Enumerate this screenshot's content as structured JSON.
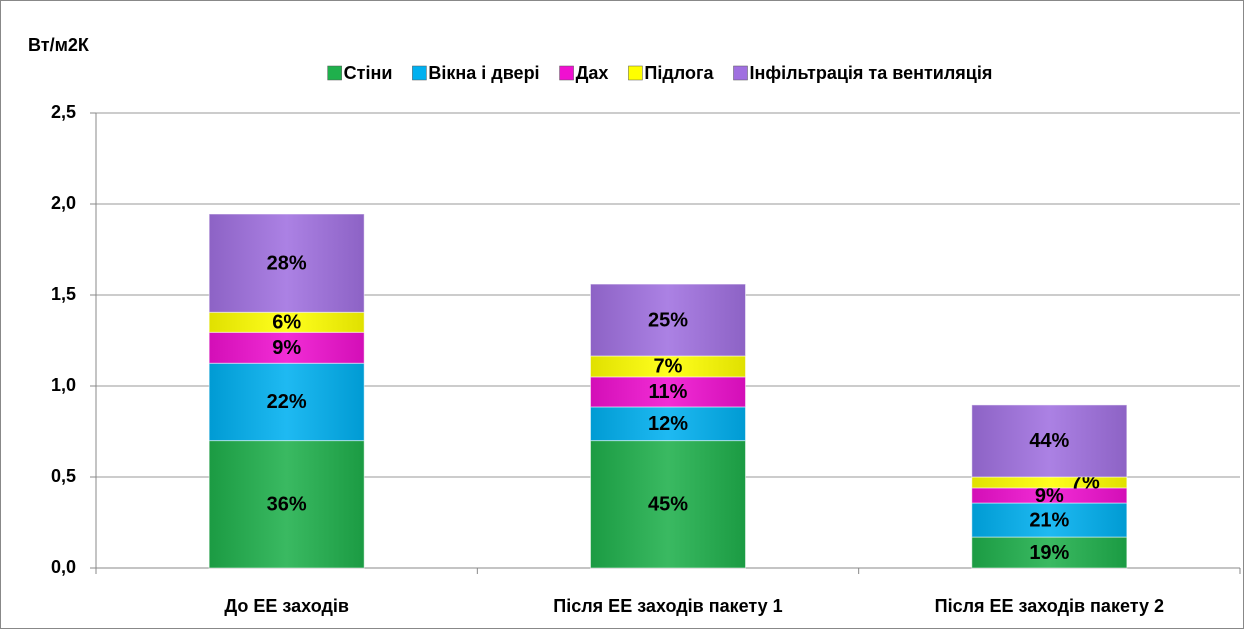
{
  "chart_data": {
    "type": "stacked_bar",
    "y_axis_label": "Вт/м2К",
    "categories": [
      "До ЕЕ заходів",
      "Після ЕЕ заходів пакету 1",
      "Після ЕЕ заходів пакету 2"
    ],
    "series": [
      {
        "name": "Стіни",
        "color": "#1fb04c",
        "values": [
          0.7,
          0.7,
          0.17
        ],
        "value_labels": [
          "36%",
          "45%",
          "19%"
        ]
      },
      {
        "name": "Вікна і двері",
        "color": "#00b0f0",
        "values": [
          0.425,
          0.185,
          0.187
        ],
        "value_labels": [
          "22%",
          "12%",
          "21%"
        ]
      },
      {
        "name": "Дах",
        "color": "#f010d0",
        "values": [
          0.17,
          0.165,
          0.083
        ],
        "value_labels": [
          "9%",
          "11%",
          "9%"
        ]
      },
      {
        "name": "Підлога",
        "color": "#ffff00",
        "values": [
          0.11,
          0.115,
          0.06
        ],
        "value_labels": [
          "6%",
          "7%",
          "7%"
        ]
      },
      {
        "name": "Інфільтрація та вентиляція",
        "color": "#a070e0",
        "values": [
          0.54,
          0.395,
          0.396
        ],
        "value_labels": [
          "28%",
          "25%",
          "44%"
        ]
      }
    ],
    "ylim": [
      0,
      2.5
    ],
    "yticks": [
      {
        "value": 0,
        "label": "0,0"
      },
      {
        "value": 0.5,
        "label": "0,5"
      },
      {
        "value": 1,
        "label": "1,0"
      },
      {
        "value": 1.5,
        "label": "1,5"
      },
      {
        "value": 2,
        "label": "2,0"
      },
      {
        "value": 2.5,
        "label": "2,5"
      }
    ],
    "grid": true,
    "legend": "top"
  }
}
